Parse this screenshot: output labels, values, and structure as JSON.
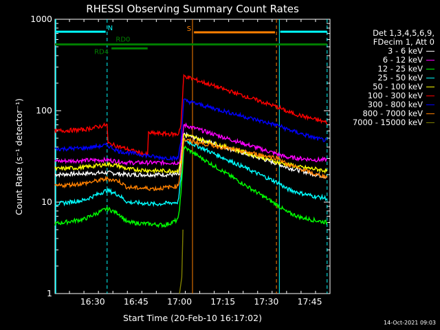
{
  "chart_data": {
    "type": "line",
    "title": "RHESSI Observing Summary Count Rates",
    "xlabel": "Start Time (20-Feb-10 16:17:02)",
    "ylabel": "Count Rate (s⁻¹ detector⁻¹)",
    "yscale": "log",
    "ylim": [
      1,
      1000
    ],
    "yticks": [
      1,
      10,
      100,
      1000
    ],
    "ytick_labels": [
      "1",
      "10",
      "100",
      "1000"
    ],
    "xlim_minutes": [
      0,
      95
    ],
    "xticks": [
      {
        "minute": 13,
        "label": "16:30"
      },
      {
        "minute": 28,
        "label": "16:45"
      },
      {
        "minute": 43,
        "label": "17:00"
      },
      {
        "minute": 58,
        "label": "17:15"
      },
      {
        "minute": 73,
        "label": "17:30"
      },
      {
        "minute": 88,
        "label": "17:45"
      }
    ],
    "series": [
      {
        "name": "3 - 6 keV",
        "color": "#ffffff",
        "points": [
          [
            0,
            20
          ],
          [
            18,
            21
          ],
          [
            25,
            20
          ],
          [
            43,
            20
          ],
          [
            43.5,
            28
          ],
          [
            44.5,
            55
          ],
          [
            77.5,
            26
          ],
          [
            80,
            24
          ],
          [
            85,
            22
          ],
          [
            90,
            20
          ],
          [
            94,
            19
          ]
        ]
      },
      {
        "name": "6 - 12 keV",
        "color": "#ff00ff",
        "points": [
          [
            0,
            28
          ],
          [
            18,
            29
          ],
          [
            25,
            27
          ],
          [
            43,
            27
          ],
          [
            43.5,
            35
          ],
          [
            44.5,
            70
          ],
          [
            77.5,
            33
          ],
          [
            80,
            31
          ],
          [
            85,
            30
          ],
          [
            90,
            29
          ],
          [
            94,
            29
          ]
        ]
      },
      {
        "name": "12 - 25 keV",
        "color": "#00ff00",
        "points": [
          [
            0,
            5.8
          ],
          [
            10,
            6.5
          ],
          [
            18,
            8.5
          ],
          [
            22,
            7.5
          ],
          [
            25,
            6
          ],
          [
            38,
            5.6
          ],
          [
            42.5,
            6.4
          ],
          [
            43.5,
            12
          ],
          [
            44.5,
            40
          ],
          [
            77.5,
            9
          ],
          [
            80,
            7.8
          ],
          [
            85,
            6.8
          ],
          [
            90,
            6.3
          ],
          [
            94,
            6
          ]
        ]
      },
      {
        "name": "25 - 50 keV",
        "color": "#00ffff",
        "points": [
          [
            0,
            9.5
          ],
          [
            10,
            10.5
          ],
          [
            18,
            13.5
          ],
          [
            22,
            12
          ],
          [
            25,
            10
          ],
          [
            35,
            9.5
          ],
          [
            42.5,
            10
          ],
          [
            43.5,
            18
          ],
          [
            44.5,
            48
          ],
          [
            77.5,
            16
          ],
          [
            80,
            14
          ],
          [
            85,
            12.5
          ],
          [
            90,
            11.5
          ],
          [
            94,
            11
          ]
        ]
      },
      {
        "name": "50 - 100 keV",
        "color": "#ffff00",
        "points": [
          [
            0,
            23
          ],
          [
            10,
            24
          ],
          [
            18,
            26
          ],
          [
            22,
            25
          ],
          [
            25,
            23
          ],
          [
            35,
            22
          ],
          [
            42.5,
            22
          ],
          [
            43.5,
            28
          ],
          [
            44.5,
            55
          ],
          [
            77.5,
            27
          ],
          [
            80,
            26
          ],
          [
            85,
            24
          ],
          [
            90,
            23
          ],
          [
            94,
            22
          ]
        ]
      },
      {
        "name": "100 - 300 keV",
        "color": "#ff0000",
        "points": [
          [
            0,
            60
          ],
          [
            10,
            62
          ],
          [
            18,
            70
          ],
          [
            18.3,
            44
          ],
          [
            30,
            34
          ],
          [
            32,
            33
          ],
          [
            32.3,
            57
          ],
          [
            42.5,
            55
          ],
          [
            43.5,
            70
          ],
          [
            44.5,
            240
          ],
          [
            77.5,
            108
          ],
          [
            80,
            98
          ],
          [
            85,
            88
          ],
          [
            90,
            80
          ],
          [
            94,
            74
          ]
        ]
      },
      {
        "name": "300 - 800 keV",
        "color": "#0000ff",
        "points": [
          [
            0,
            38
          ],
          [
            10,
            39
          ],
          [
            18,
            42
          ],
          [
            22,
            36
          ],
          [
            30,
            33
          ],
          [
            35,
            31
          ],
          [
            42.5,
            30
          ],
          [
            43.5,
            48
          ],
          [
            44.5,
            130
          ],
          [
            77.5,
            68
          ],
          [
            80,
            63
          ],
          [
            85,
            56
          ],
          [
            90,
            50
          ],
          [
            94,
            47
          ]
        ]
      },
      {
        "name": "800 - 7000 keV",
        "color": "#ff8000",
        "points": [
          [
            0,
            15
          ],
          [
            10,
            16
          ],
          [
            18,
            18
          ],
          [
            22,
            17
          ],
          [
            25,
            14.5
          ],
          [
            35,
            14
          ],
          [
            42.5,
            15
          ],
          [
            43.5,
            22
          ],
          [
            44.5,
            48
          ],
          [
            77.5,
            30
          ],
          [
            80,
            26
          ],
          [
            85,
            23
          ],
          [
            90,
            20
          ],
          [
            94,
            19
          ]
        ]
      },
      {
        "name": "7000 - 15000 keV",
        "color": "#808000",
        "points": [
          [
            43,
            1
          ],
          [
            43.8,
            1.5
          ],
          [
            44.2,
            5
          ]
        ]
      }
    ],
    "vertical_lines_minutes": [
      {
        "minute": 18,
        "color": "#00ffff",
        "dashed": true
      },
      {
        "minute": 47.5,
        "color": "#ff8000",
        "dashed": false
      },
      {
        "minute": 76.5,
        "color": "#ff8000",
        "dashed": true
      },
      {
        "minute": 77.5,
        "color": "#00ffff",
        "dashed": false
      },
      {
        "minute": 94,
        "color": "#00ffff",
        "dashed": true
      }
    ],
    "state_bars": [
      {
        "label": "N",
        "color": "#00ffff",
        "y_value": 730,
        "segments": [
          [
            0,
            17.5
          ],
          [
            77.8,
            94
          ]
        ]
      },
      {
        "label": "S",
        "color": "#ff8000",
        "y_value": 720,
        "segments": [
          [
            48,
            76
          ]
        ]
      },
      {
        "label": "RD0",
        "color": "#008000",
        "y_value": 530,
        "segments": [
          [
            0,
            94
          ]
        ]
      },
      {
        "label": "RD4",
        "color": "#008000",
        "y_value": 480,
        "segments": [
          [
            19.5,
            32
          ]
        ]
      }
    ],
    "legend_header": [
      "Det 1,3,4,5,6,9,",
      "FDecim 1, Att 0"
    ]
  },
  "legend": {
    "header_line1": "Det 1,3,4,5,6,9,",
    "header_line2": "FDecim 1, Att 0",
    "items": [
      {
        "label": "3 - 6 keV",
        "color": "#ffffff"
      },
      {
        "label": "6 - 12 keV",
        "color": "#ff00ff"
      },
      {
        "label": "12 - 25 keV",
        "color": "#00ff00"
      },
      {
        "label": "25 - 50 keV",
        "color": "#00ffff"
      },
      {
        "label": "50 - 100 keV",
        "color": "#ffff00"
      },
      {
        "label": "100 - 300 keV",
        "color": "#ff0000"
      },
      {
        "label": "300 - 800 keV",
        "color": "#0000ff"
      },
      {
        "label": "800 - 7000 keV",
        "color": "#ff8000"
      },
      {
        "label": "7000 - 15000 keV",
        "color": "#808000"
      }
    ]
  },
  "timestamp": "14-Oct-2021 09:03"
}
